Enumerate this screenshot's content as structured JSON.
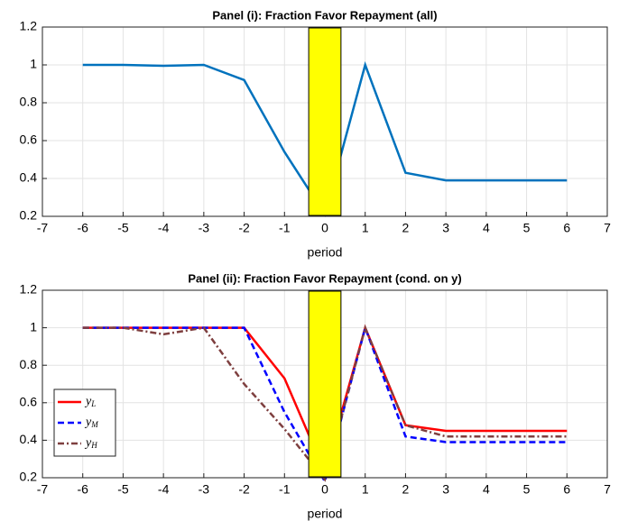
{
  "chart_data": [
    {
      "type": "line",
      "title": "Panel (i): Fraction Favor Repayment (all)",
      "x_label": "period",
      "x": [
        -6,
        -5,
        -4,
        -3,
        -2,
        -1,
        0,
        1,
        2,
        3,
        4,
        5,
        6
      ],
      "values": [
        1,
        1,
        0.995,
        1,
        0.92,
        0.54,
        0.21,
        1,
        0.43,
        0.39,
        0.39,
        0.39,
        0.39
      ],
      "color": "#0072bd",
      "xlim": [
        -7,
        7
      ],
      "ylim": [
        0.2,
        1.2
      ],
      "xticks": [
        -7,
        -6,
        -5,
        -4,
        -3,
        -2,
        -1,
        0,
        1,
        2,
        3,
        4,
        5,
        6,
        7
      ],
      "yticks": [
        0.2,
        0.4,
        0.6,
        0.8,
        1,
        1.2
      ],
      "grid": true,
      "highlight": [
        -0.4,
        0.4
      ],
      "highlight_color": "#ffff00"
    },
    {
      "type": "line",
      "title": "Panel (ii): Fraction Favor Repayment (cond. on y)",
      "x_label": "period",
      "x": [
        -6,
        -5,
        -4,
        -3,
        -2,
        -1,
        0,
        1,
        2,
        3,
        4,
        5,
        6
      ],
      "series": [
        {
          "name": "yL",
          "color": "#ff0000",
          "dash": "solid",
          "values": [
            1,
            1,
            1,
            1,
            1,
            0.73,
            0.23,
            1,
            0.48,
            0.45,
            0.45,
            0.45,
            0.45
          ]
        },
        {
          "name": "yM",
          "color": "#0000ff",
          "dash": "dashed",
          "values": [
            1,
            1,
            1,
            1,
            1,
            0.55,
            0.18,
            1,
            0.42,
            0.39,
            0.39,
            0.39,
            0.39
          ]
        },
        {
          "name": "yH",
          "color": "#7e3f3f",
          "dash": "dashdot",
          "values": [
            1,
            1,
            0.965,
            1,
            0.7,
            0.46,
            0.19,
            1,
            0.48,
            0.42,
            0.42,
            0.42,
            0.42
          ]
        }
      ],
      "xlim": [
        -7,
        7
      ],
      "ylim": [
        0.2,
        1.2
      ],
      "xticks": [
        -7,
        -6,
        -5,
        -4,
        -3,
        -2,
        -1,
        0,
        1,
        2,
        3,
        4,
        5,
        6,
        7
      ],
      "yticks": [
        0.2,
        0.4,
        0.6,
        0.8,
        1,
        1.2
      ],
      "grid": true,
      "legend": "lower left",
      "highlight": [
        -0.4,
        0.4
      ],
      "highlight_color": "#ffff00"
    }
  ]
}
